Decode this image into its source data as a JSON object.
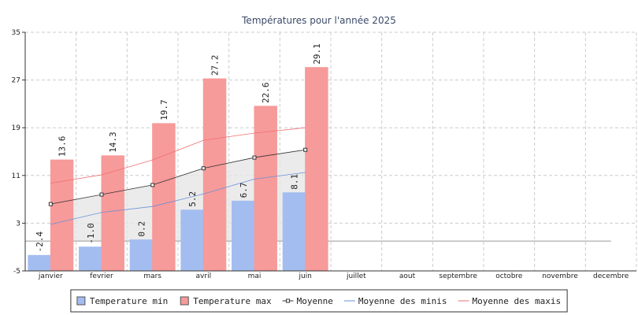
{
  "chart_data": {
    "type": "bar",
    "title": "Températures pour l'année 2025",
    "categories": [
      "janvier",
      "fevrier",
      "mars",
      "avril",
      "mai",
      "juin",
      "juillet",
      "aout",
      "septembre",
      "octobre",
      "novembre",
      "decembre"
    ],
    "ylim": [
      -5,
      35
    ],
    "yticks": [
      -5,
      3,
      11,
      19,
      27,
      35
    ],
    "grid": true,
    "legend": "bottom",
    "series": [
      {
        "name": "Temperature min",
        "type": "bar",
        "color": "#a3bdf0",
        "values": [
          -2.4,
          -1.0,
          0.2,
          5.2,
          6.7,
          8.1,
          null,
          null,
          null,
          null,
          null,
          null
        ],
        "value_labels": [
          "-2.4",
          "-1.0",
          "0.2",
          "5.2",
          "6.7",
          "8.1",
          null,
          null,
          null,
          null,
          null,
          null
        ]
      },
      {
        "name": "Temperature max",
        "type": "bar",
        "color": "#f79a9a",
        "values": [
          13.6,
          14.3,
          19.7,
          27.2,
          22.6,
          29.1,
          null,
          null,
          null,
          null,
          null,
          null
        ],
        "value_labels": [
          "13.6",
          "14.3",
          "19.7",
          "27.2",
          "22.6",
          "29.1",
          null,
          null,
          null,
          null,
          null,
          null
        ]
      },
      {
        "name": "Moyenne",
        "type": "line",
        "color": "#333333",
        "marker": true,
        "fill": "#e6e6e6",
        "values": [
          6.2,
          7.8,
          9.4,
          12.2,
          14.0,
          15.3,
          null,
          null,
          null,
          null,
          null,
          null
        ]
      },
      {
        "name": "Moyenne des minis",
        "type": "line",
        "color": "#6a8fd8",
        "values": [
          2.8,
          4.8,
          5.8,
          7.9,
          10.4,
          11.5,
          null,
          null,
          null,
          null,
          null,
          null
        ]
      },
      {
        "name": "Moyenne des maxis",
        "type": "line",
        "color": "#f07070",
        "values": [
          9.7,
          11.1,
          13.6,
          16.9,
          18.1,
          19.0,
          null,
          null,
          null,
          null,
          null,
          null
        ]
      }
    ]
  }
}
